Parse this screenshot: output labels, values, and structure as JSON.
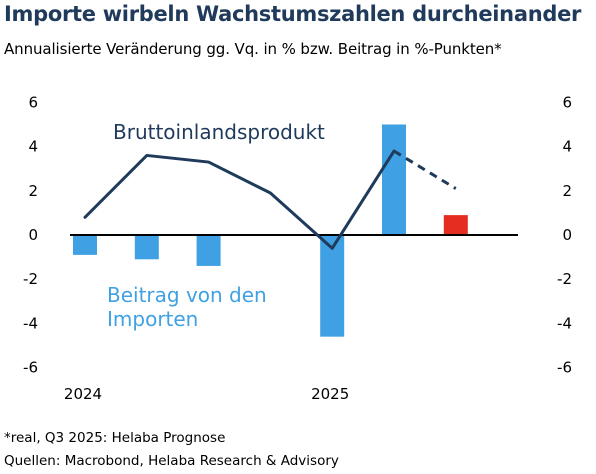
{
  "title": "Importe wirbeln Wachstumszahlen durcheinander",
  "subtitle": "Annualisierte Veränderung gg. Vq. in % bzw. Beitrag in %-Punkten*",
  "footnotes": {
    "note": "*real, Q3 2025: Helaba Prognose",
    "source": "Quellen: Macrobond, Helaba Research & Advisory"
  },
  "colors": {
    "title": "#1f3a5b",
    "gdp_line": "#1f3a5b",
    "imports_bar": "#3fa1e3",
    "forecast_bar": "#e52d21",
    "axis": "#000000"
  },
  "chart_data": {
    "type": "bar+line",
    "periods": [
      "2024 Q1",
      "2024 Q2",
      "2024 Q3",
      "2024 Q4",
      "2025 Q1",
      "2025 Q2",
      "2025 Q3"
    ],
    "x_tick_labels": [
      {
        "label": "2024",
        "index": 0
      },
      {
        "label": "2025",
        "index": 4
      }
    ],
    "ylim": [
      -6,
      6
    ],
    "y_ticks": [
      6,
      4,
      2,
      0,
      -2,
      -4,
      -6
    ],
    "y_tick_labels": [
      "6",
      "4",
      "2",
      "0",
      "-2",
      "-4",
      "-6"
    ],
    "series": [
      {
        "name": "Bruttoinlandsprodukt",
        "type": "line",
        "values": [
          0.8,
          3.6,
          3.3,
          1.9,
          -0.6,
          3.8,
          2.1
        ],
        "forecast_from_index": 5
      },
      {
        "name": "Beitrag von den Importen",
        "label_lines": [
          "Beitrag von den",
          "Importen"
        ],
        "type": "bar",
        "values": [
          -0.9,
          -1.1,
          -1.4,
          null,
          -4.6,
          5.0,
          0.9
        ],
        "forecast_index": 6
      }
    ]
  }
}
